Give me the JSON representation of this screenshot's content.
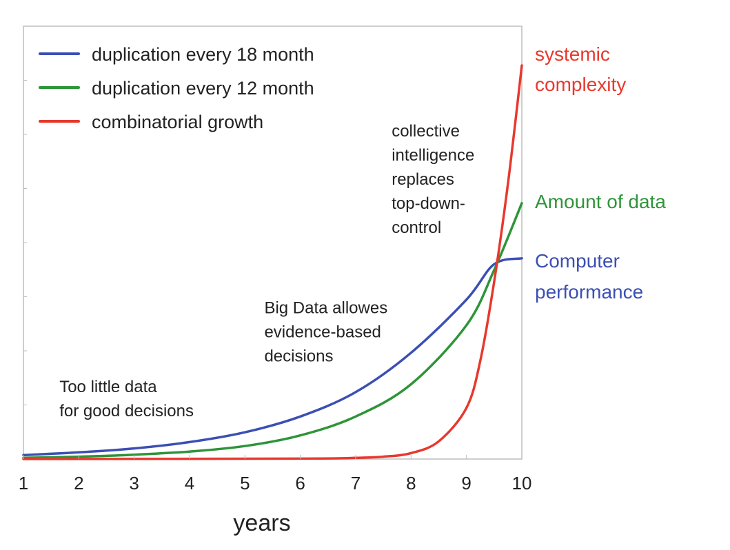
{
  "colors": {
    "blue": "#3b4fb3",
    "green": "#2e9438",
    "red": "#e8382d",
    "text": "#222222",
    "frame": "#bdbdbd"
  },
  "chart_data": {
    "type": "line",
    "title": "",
    "xlabel": "years",
    "ylabel": "",
    "xlim": [
      1,
      10
    ],
    "ylim": [
      0,
      1
    ],
    "xticks": [
      "1",
      "2",
      "3",
      "4",
      "5",
      "6",
      "7",
      "8",
      "9",
      "10"
    ],
    "grid": false,
    "legend_position": "top-left",
    "series": [
      {
        "name": "duplication every 18 month",
        "color": "#3b4fb3",
        "end_label": [
          "Computer",
          "performance"
        ],
        "x": [
          1,
          2,
          3,
          4,
          5,
          6,
          7,
          8,
          9,
          9.5,
          10
        ],
        "y": [
          0.01,
          0.017,
          0.027,
          0.043,
          0.068,
          0.108,
          0.17,
          0.27,
          0.405,
          0.495,
          0.51
        ]
      },
      {
        "name": "duplication every 12 month",
        "color": "#2e9438",
        "end_label": [
          "Amount of data"
        ],
        "x": [
          1,
          2,
          3,
          4,
          5,
          6,
          7,
          8,
          9,
          9.5,
          10
        ],
        "y": [
          0.003,
          0.006,
          0.011,
          0.019,
          0.033,
          0.06,
          0.108,
          0.19,
          0.34,
          0.48,
          0.65
        ]
      },
      {
        "name": "combinatorial growth",
        "color": "#e8382d",
        "end_label": [
          "systemic",
          "complexity"
        ],
        "x": [
          1,
          6,
          7,
          7.5,
          8,
          8.5,
          9,
          9.25,
          9.5,
          9.75,
          10
        ],
        "y": [
          0,
          0.001,
          0.003,
          0.006,
          0.015,
          0.045,
          0.13,
          0.25,
          0.45,
          0.7,
          1.0
        ]
      }
    ],
    "annotations": [
      {
        "lines": [
          "Too little data",
          "for good decisions"
        ],
        "x": 1.65,
        "y": 0.17
      },
      {
        "lines": [
          "Big Data allowes",
          "evidence-based",
          "decisions"
        ],
        "x": 5.35,
        "y": 0.37
      },
      {
        "lines": [
          "collective",
          "intelligence",
          "replaces",
          "top-down-",
          "control"
        ],
        "x": 7.65,
        "y": 0.82
      }
    ]
  }
}
